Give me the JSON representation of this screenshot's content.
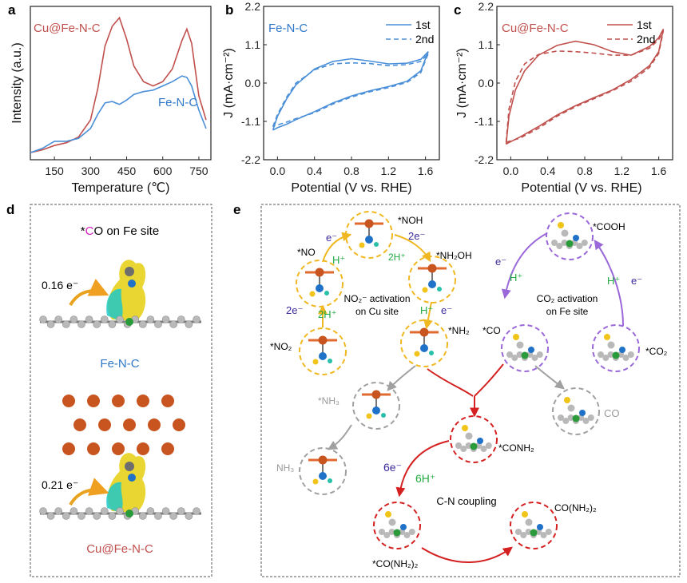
{
  "panels": {
    "a": {
      "label": "a",
      "ylabel": "Intensity (a.u.)",
      "xlabel": "Temperature (℃)",
      "xticks": [
        "150",
        "300",
        "450",
        "600",
        "750"
      ],
      "series_labels": [
        "Cu@Fe-N-C",
        "Fe-N-C"
      ]
    },
    "b": {
      "label": "b",
      "title": "Fe-N-C",
      "ylabel": "J (mA·cm⁻²)",
      "xlabel": "Potential (V vs. RHE)",
      "xticks": [
        "0.0",
        "0.4",
        "0.8",
        "1.2",
        "1.6"
      ],
      "yticks": [
        "2.2",
        "1.1",
        "0.0",
        "-1.1",
        "-2.2"
      ],
      "legend": [
        "1st",
        "2nd"
      ]
    },
    "c": {
      "label": "c",
      "title": "Cu@Fe-N-C",
      "ylabel": "J (mA·cm⁻²)",
      "xlabel": "Potential (V vs. RHE)",
      "xticks": [
        "0.0",
        "0.4",
        "0.8",
        "1.2",
        "1.6"
      ],
      "yticks": [
        "2.2",
        "1.1",
        "0.0",
        "-1.1",
        "-2.2"
      ],
      "legend": [
        "1st",
        "2nd"
      ]
    },
    "d": {
      "label": "d",
      "title_pre": "*",
      "title_c": "C",
      "title_post": "O on Fe site",
      "charge1": "0.16 e⁻",
      "name1": "Fe-N-C",
      "charge2": "0.21 e⁻",
      "name2": "Cu@Fe-N-C"
    },
    "e": {
      "label": "e",
      "no2_activation": "NO₂⁻ activation",
      "on_cu_site": "on Cu site",
      "co2_activation": "CO₂ activation",
      "on_fe_site": "on Fe site",
      "coupling": "C-N coupling",
      "int": {
        "noh": "*NOH",
        "no": "*NO",
        "nh2oh": "*NH₂OH",
        "no2": "*NO₂",
        "nh2": "*NH₂",
        "nh3_ads": "*NH₃",
        "nh3": "NH₃",
        "cooh": "*COOH",
        "co_ads": "*CO",
        "co2": "*CO₂",
        "co": "CO",
        "conh2": "*CONH₂",
        "urea_ads": "*CO(NH₂)₂",
        "urea": "CO(NH₂)₂"
      },
      "steps": {
        "e1": "e⁻",
        "two_e": "2e⁻",
        "h1": "H⁺",
        "two_h_a": "2H⁺",
        "two_e_b": "2e⁻",
        "two_h_b": "2H⁺",
        "h2": "H⁺",
        "e2": "e⁻",
        "e3": "e⁻",
        "h3": "H⁺",
        "h4": "H⁺",
        "e4": "e⁻",
        "six_e": "6e⁻",
        "six_h": "6H⁺"
      }
    }
  },
  "chart_data": [
    {
      "panel": "a",
      "type": "line",
      "title": "",
      "xlabel": "Temperature (℃)",
      "ylabel": "Intensity (a.u.)",
      "xlim": [
        50,
        800
      ],
      "series": [
        {
          "name": "Cu@Fe-N-C",
          "color": "#c0504d",
          "x": [
            50,
            100,
            150,
            200,
            250,
            300,
            330,
            360,
            390,
            420,
            450,
            480,
            520,
            560,
            600,
            640,
            680,
            700,
            720,
            750,
            780
          ],
          "y": [
            0.05,
            0.07,
            0.1,
            0.12,
            0.16,
            0.28,
            0.5,
            0.8,
            0.94,
            1.0,
            0.85,
            0.66,
            0.55,
            0.52,
            0.55,
            0.64,
            0.84,
            0.92,
            0.82,
            0.45,
            0.28
          ]
        },
        {
          "name": "Fe-N-C",
          "color": "#4a8fd8",
          "x": [
            50,
            100,
            150,
            200,
            250,
            300,
            330,
            360,
            390,
            420,
            450,
            480,
            520,
            560,
            600,
            640,
            680,
            700,
            720,
            750,
            780
          ],
          "y": [
            0.05,
            0.08,
            0.13,
            0.13,
            0.15,
            0.22,
            0.32,
            0.4,
            0.41,
            0.39,
            0.42,
            0.46,
            0.48,
            0.49,
            0.52,
            0.55,
            0.59,
            0.58,
            0.52,
            0.35,
            0.22
          ]
        }
      ]
    },
    {
      "panel": "b",
      "type": "line",
      "title": "Fe-N-C",
      "xlabel": "Potential (V vs. RHE)",
      "ylabel": "J (mA·cm⁻²)",
      "xlim": [
        -0.15,
        1.75
      ],
      "ylim": [
        -2.2,
        2.2
      ],
      "series": [
        {
          "name": "1st",
          "style": "solid",
          "color": "#4a8fd8",
          "x": [
            -0.05,
            0.0,
            0.1,
            0.2,
            0.4,
            0.6,
            0.8,
            1.0,
            1.2,
            1.4,
            1.55,
            1.63,
            1.55,
            1.4,
            1.2,
            1.0,
            0.8,
            0.6,
            0.4,
            0.2,
            0.1,
            0.0,
            -0.05
          ],
          "y": [
            -1.35,
            -0.95,
            -0.45,
            -0.05,
            0.4,
            0.62,
            0.7,
            0.63,
            0.55,
            0.57,
            0.68,
            0.9,
            0.35,
            0.05,
            -0.1,
            -0.22,
            -0.37,
            -0.57,
            -0.82,
            -1.05,
            -1.18,
            -1.28,
            -1.35
          ]
        },
        {
          "name": "2nd",
          "style": "dashed",
          "color": "#4a8fd8",
          "x": [
            -0.05,
            0.0,
            0.1,
            0.2,
            0.4,
            0.6,
            0.8,
            1.0,
            1.2,
            1.4,
            1.55,
            1.63,
            1.55,
            1.4,
            1.2,
            1.0,
            0.8,
            0.6,
            0.4,
            0.2,
            0.1,
            0.0,
            -0.05
          ],
          "y": [
            -1.25,
            -0.9,
            -0.4,
            0.0,
            0.38,
            0.55,
            0.58,
            0.56,
            0.5,
            0.53,
            0.62,
            0.85,
            0.3,
            0.02,
            -0.13,
            -0.25,
            -0.4,
            -0.6,
            -0.85,
            -1.02,
            -1.12,
            -1.2,
            -1.25
          ]
        }
      ]
    },
    {
      "panel": "c",
      "type": "line",
      "title": "Cu@Fe-N-C",
      "xlabel": "Potential (V vs. RHE)",
      "ylabel": "J (mA·cm⁻²)",
      "xlim": [
        -0.15,
        1.75
      ],
      "ylim": [
        -2.2,
        2.2
      ],
      "series": [
        {
          "name": "1st",
          "style": "solid",
          "color": "#c0504d",
          "x": [
            -0.05,
            -0.02,
            0.05,
            0.15,
            0.3,
            0.5,
            0.7,
            0.9,
            1.1,
            1.3,
            1.5,
            1.6,
            1.65,
            1.6,
            1.5,
            1.3,
            1.1,
            0.9,
            0.7,
            0.5,
            0.3,
            0.1,
            0.0,
            -0.05
          ],
          "y": [
            -1.75,
            -0.95,
            -0.2,
            0.35,
            0.8,
            1.08,
            1.2,
            1.1,
            0.9,
            0.8,
            1.05,
            1.3,
            1.55,
            0.9,
            0.5,
            0.1,
            -0.2,
            -0.42,
            -0.65,
            -0.92,
            -1.25,
            -1.55,
            -1.68,
            -1.75
          ]
        },
        {
          "name": "2nd",
          "style": "dashed",
          "color": "#c0504d",
          "x": [
            -0.05,
            -0.02,
            0.05,
            0.15,
            0.3,
            0.5,
            0.7,
            0.9,
            1.1,
            1.3,
            1.5,
            1.6,
            1.65,
            1.6,
            1.5,
            1.3,
            1.1,
            0.9,
            0.7,
            0.5,
            0.3,
            0.1,
            0.0,
            -0.05
          ],
          "y": [
            -1.7,
            -0.75,
            0.05,
            0.55,
            0.82,
            0.92,
            0.9,
            0.86,
            0.8,
            0.8,
            1.0,
            1.25,
            1.5,
            0.85,
            0.45,
            0.05,
            -0.22,
            -0.45,
            -0.68,
            -0.95,
            -1.3,
            -1.58,
            -1.66,
            -1.7
          ]
        }
      ]
    }
  ]
}
